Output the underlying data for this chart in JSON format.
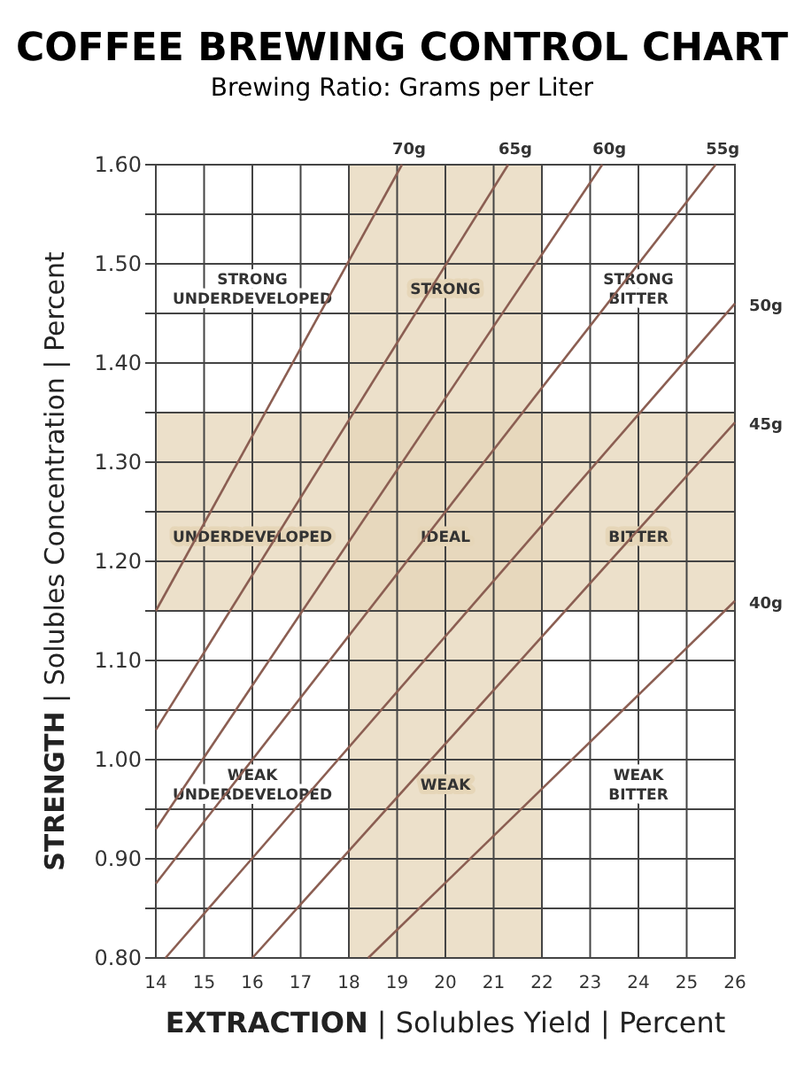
{
  "chart_data": {
    "type": "line",
    "title": "COFFEE BREWING CONTROL CHART",
    "subtitle": "Brewing Ratio: Grams per Liter",
    "xlabel": "EXTRACTION | Solubles Yield | Percent",
    "ylabel": "STRENGTH | Solubles Concentration | Percent",
    "xlim": [
      14,
      26
    ],
    "xticks": [
      14,
      15,
      16,
      17,
      18,
      19,
      20,
      21,
      22,
      23,
      24,
      25,
      26
    ],
    "ylim": [
      0.8,
      1.6
    ],
    "yticks": [
      {
        "value": 0.8,
        "label": "0.80"
      },
      {
        "value": 0.85,
        "label": null
      },
      {
        "value": 0.9,
        "label": "0.90"
      },
      {
        "value": 0.95,
        "label": null
      },
      {
        "value": 1.0,
        "label": "1.00"
      },
      {
        "value": 1.05,
        "label": null
      },
      {
        "value": 1.1,
        "label": "1.10"
      },
      {
        "value": 1.15,
        "label": null
      },
      {
        "value": 1.2,
        "label": "1.20"
      },
      {
        "value": 1.25,
        "label": null
      },
      {
        "value": 1.3,
        "label": "1.30"
      },
      {
        "value": 1.35,
        "label": null
      },
      {
        "value": 1.4,
        "label": "1.40"
      },
      {
        "value": 1.45,
        "label": null
      },
      {
        "value": 1.5,
        "label": "1.50"
      },
      {
        "value": 1.55,
        "label": null
      },
      {
        "value": 1.6,
        "label": "1.60"
      }
    ],
    "grid": true,
    "marker": "none",
    "line_style": "solid",
    "series": [
      {
        "name": "70g",
        "color": "#8b5e52",
        "x": [
          14,
          19.1
        ],
        "values": [
          1.15,
          1.6
        ]
      },
      {
        "name": "65g",
        "color": "#8b5e52",
        "x": [
          14,
          21.3
        ],
        "values": [
          1.03,
          1.6
        ]
      },
      {
        "name": "60g",
        "color": "#8b5e52",
        "x": [
          14,
          23.25
        ],
        "values": [
          0.93,
          1.6
        ]
      },
      {
        "name": "55g",
        "color": "#8b5e52",
        "x": [
          14,
          25.6
        ],
        "values": [
          0.875,
          1.6
        ]
      },
      {
        "name": "50g",
        "color": "#8b5e52",
        "x": [
          14.2,
          26
        ],
        "values": [
          0.8,
          1.46
        ]
      },
      {
        "name": "45g",
        "color": "#8b5e52",
        "x": [
          16,
          26
        ],
        "values": [
          0.8,
          1.34
        ]
      },
      {
        "name": "40g",
        "color": "#8b5e52",
        "x": [
          18.4,
          26
        ],
        "values": [
          0.8,
          1.16
        ]
      }
    ],
    "bands": [
      {
        "axis": "x",
        "from": 18,
        "to": 22,
        "color": "#e6d6b8"
      },
      {
        "axis": "y",
        "from": 1.15,
        "to": 1.35,
        "color": "#e6d6b8"
      }
    ],
    "annotations": [
      "STRONG UNDERDEVELOPED",
      "STRONG",
      "STRONG BITTER",
      "UNDERDEVELOPED",
      "IDEAL",
      "BITTER",
      "WEAK UNDERDEVELOPED",
      "WEAK",
      "WEAK BITTER"
    ]
  }
}
